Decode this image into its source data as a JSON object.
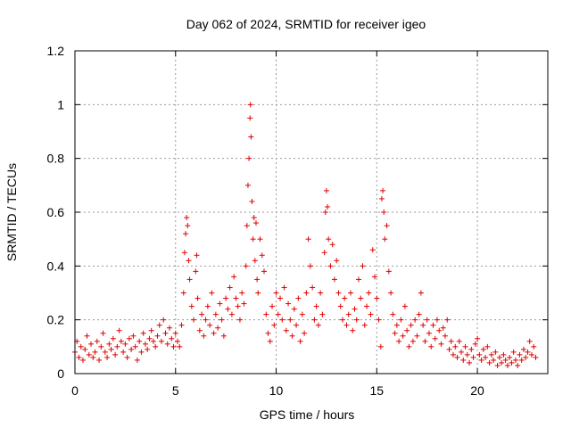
{
  "chart_data": {
    "type": "scatter",
    "title": "Day 062 of 2024, SRMTID for receiver igeo",
    "xlabel": "GPS time / hours",
    "ylabel": "SRMTID / TECUs",
    "xlim": [
      0,
      23.5
    ],
    "ylim": [
      0,
      1.2
    ],
    "xticks": [
      0,
      5,
      10,
      15,
      20
    ],
    "xtick_labels": [
      "0",
      "5",
      "10",
      "15",
      "20"
    ],
    "yticks": [
      0,
      0.2,
      0.4,
      0.6,
      0.8,
      1,
      1.2
    ],
    "ytick_labels": [
      "0",
      "0.2",
      "0.4",
      "0.6",
      "0.8",
      "1",
      "1.2"
    ],
    "grid": true,
    "marker": "plus",
    "series": [
      {
        "name": "SRMTID",
        "color": "#e00000",
        "points": [
          [
            0.0,
            0.08
          ],
          [
            0.1,
            0.12
          ],
          [
            0.2,
            0.06
          ],
          [
            0.3,
            0.1
          ],
          [
            0.4,
            0.05
          ],
          [
            0.5,
            0.09
          ],
          [
            0.6,
            0.14
          ],
          [
            0.7,
            0.07
          ],
          [
            0.8,
            0.11
          ],
          [
            0.9,
            0.06
          ],
          [
            1.0,
            0.08
          ],
          [
            1.1,
            0.12
          ],
          [
            1.2,
            0.05
          ],
          [
            1.3,
            0.1
          ],
          [
            1.4,
            0.15
          ],
          [
            1.5,
            0.08
          ],
          [
            1.6,
            0.06
          ],
          [
            1.7,
            0.11
          ],
          [
            1.8,
            0.09
          ],
          [
            1.9,
            0.13
          ],
          [
            2.0,
            0.07
          ],
          [
            2.1,
            0.1
          ],
          [
            2.2,
            0.16
          ],
          [
            2.3,
            0.12
          ],
          [
            2.4,
            0.08
          ],
          [
            2.5,
            0.11
          ],
          [
            2.6,
            0.06
          ],
          [
            2.7,
            0.13
          ],
          [
            2.8,
            0.09
          ],
          [
            2.9,
            0.14
          ],
          [
            3.0,
            0.1
          ],
          [
            3.1,
            0.05
          ],
          [
            3.2,
            0.12
          ],
          [
            3.3,
            0.08
          ],
          [
            3.4,
            0.15
          ],
          [
            3.5,
            0.11
          ],
          [
            3.6,
            0.09
          ],
          [
            3.7,
            0.13
          ],
          [
            3.8,
            0.16
          ],
          [
            3.9,
            0.12
          ],
          [
            4.0,
            0.1
          ],
          [
            4.1,
            0.14
          ],
          [
            4.2,
            0.18
          ],
          [
            4.3,
            0.12
          ],
          [
            4.4,
            0.2
          ],
          [
            4.5,
            0.15
          ],
          [
            4.6,
            0.11
          ],
          [
            4.7,
            0.17
          ],
          [
            4.8,
            0.13
          ],
          [
            4.9,
            0.1
          ],
          [
            5.0,
            0.15
          ],
          [
            5.1,
            0.12
          ],
          [
            5.2,
            0.1
          ],
          [
            5.3,
            0.18
          ],
          [
            5.4,
            0.3
          ],
          [
            5.45,
            0.45
          ],
          [
            5.5,
            0.52
          ],
          [
            5.55,
            0.58
          ],
          [
            5.6,
            0.55
          ],
          [
            5.65,
            0.42
          ],
          [
            5.7,
            0.35
          ],
          [
            5.8,
            0.25
          ],
          [
            5.9,
            0.2
          ],
          [
            6.0,
            0.38
          ],
          [
            6.05,
            0.44
          ],
          [
            6.1,
            0.28
          ],
          [
            6.2,
            0.16
          ],
          [
            6.3,
            0.22
          ],
          [
            6.4,
            0.14
          ],
          [
            6.5,
            0.2
          ],
          [
            6.6,
            0.25
          ],
          [
            6.7,
            0.18
          ],
          [
            6.8,
            0.3
          ],
          [
            6.9,
            0.15
          ],
          [
            7.0,
            0.22
          ],
          [
            7.1,
            0.17
          ],
          [
            7.2,
            0.26
          ],
          [
            7.3,
            0.2
          ],
          [
            7.4,
            0.14
          ],
          [
            7.5,
            0.28
          ],
          [
            7.6,
            0.24
          ],
          [
            7.7,
            0.32
          ],
          [
            7.8,
            0.22
          ],
          [
            7.9,
            0.36
          ],
          [
            8.0,
            0.28
          ],
          [
            8.1,
            0.25
          ],
          [
            8.2,
            0.2
          ],
          [
            8.3,
            0.3
          ],
          [
            8.4,
            0.26
          ],
          [
            8.5,
            0.4
          ],
          [
            8.55,
            0.55
          ],
          [
            8.6,
            0.7
          ],
          [
            8.65,
            0.8
          ],
          [
            8.7,
            0.95
          ],
          [
            8.72,
            1.0
          ],
          [
            8.75,
            0.88
          ],
          [
            8.8,
            0.64
          ],
          [
            8.85,
            0.5
          ],
          [
            8.9,
            0.58
          ],
          [
            8.95,
            0.42
          ],
          [
            9.0,
            0.56
          ],
          [
            9.05,
            0.35
          ],
          [
            9.1,
            0.3
          ],
          [
            9.2,
            0.5
          ],
          [
            9.3,
            0.44
          ],
          [
            9.4,
            0.38
          ],
          [
            9.5,
            0.22
          ],
          [
            9.6,
            0.15
          ],
          [
            9.7,
            0.12
          ],
          [
            9.8,
            0.25
          ],
          [
            9.9,
            0.18
          ],
          [
            10.0,
            0.3
          ],
          [
            10.1,
            0.22
          ],
          [
            10.2,
            0.28
          ],
          [
            10.3,
            0.2
          ],
          [
            10.4,
            0.32
          ],
          [
            10.5,
            0.16
          ],
          [
            10.6,
            0.26
          ],
          [
            10.7,
            0.2
          ],
          [
            10.8,
            0.14
          ],
          [
            10.9,
            0.24
          ],
          [
            11.0,
            0.18
          ],
          [
            11.1,
            0.28
          ],
          [
            11.2,
            0.12
          ],
          [
            11.3,
            0.22
          ],
          [
            11.4,
            0.15
          ],
          [
            11.5,
            0.3
          ],
          [
            11.6,
            0.5
          ],
          [
            11.7,
            0.4
          ],
          [
            11.8,
            0.32
          ],
          [
            11.9,
            0.2
          ],
          [
            12.0,
            0.25
          ],
          [
            12.1,
            0.18
          ],
          [
            12.2,
            0.3
          ],
          [
            12.3,
            0.22
          ],
          [
            12.4,
            0.45
          ],
          [
            12.45,
            0.6
          ],
          [
            12.5,
            0.68
          ],
          [
            12.55,
            0.62
          ],
          [
            12.6,
            0.5
          ],
          [
            12.7,
            0.4
          ],
          [
            12.8,
            0.48
          ],
          [
            12.9,
            0.35
          ],
          [
            13.0,
            0.42
          ],
          [
            13.1,
            0.3
          ],
          [
            13.2,
            0.25
          ],
          [
            13.3,
            0.2
          ],
          [
            13.4,
            0.28
          ],
          [
            13.5,
            0.18
          ],
          [
            13.6,
            0.22
          ],
          [
            13.7,
            0.3
          ],
          [
            13.8,
            0.16
          ],
          [
            13.9,
            0.24
          ],
          [
            14.0,
            0.2
          ],
          [
            14.1,
            0.35
          ],
          [
            14.2,
            0.28
          ],
          [
            14.3,
            0.4
          ],
          [
            14.4,
            0.18
          ],
          [
            14.5,
            0.25
          ],
          [
            14.6,
            0.3
          ],
          [
            14.7,
            0.22
          ],
          [
            14.8,
            0.46
          ],
          [
            14.9,
            0.36
          ],
          [
            15.0,
            0.28
          ],
          [
            15.1,
            0.2
          ],
          [
            15.2,
            0.1
          ],
          [
            15.25,
            0.65
          ],
          [
            15.3,
            0.68
          ],
          [
            15.35,
            0.6
          ],
          [
            15.4,
            0.5
          ],
          [
            15.5,
            0.55
          ],
          [
            15.6,
            0.38
          ],
          [
            15.7,
            0.3
          ],
          [
            15.8,
            0.22
          ],
          [
            15.9,
            0.15
          ],
          [
            16.0,
            0.18
          ],
          [
            16.1,
            0.12
          ],
          [
            16.2,
            0.2
          ],
          [
            16.3,
            0.14
          ],
          [
            16.4,
            0.25
          ],
          [
            16.5,
            0.16
          ],
          [
            16.6,
            0.1
          ],
          [
            16.7,
            0.18
          ],
          [
            16.8,
            0.12
          ],
          [
            16.9,
            0.2
          ],
          [
            17.0,
            0.14
          ],
          [
            17.1,
            0.22
          ],
          [
            17.2,
            0.3
          ],
          [
            17.3,
            0.18
          ],
          [
            17.4,
            0.12
          ],
          [
            17.5,
            0.2
          ],
          [
            17.6,
            0.15
          ],
          [
            17.7,
            0.1
          ],
          [
            17.8,
            0.18
          ],
          [
            17.9,
            0.13
          ],
          [
            18.0,
            0.2
          ],
          [
            18.1,
            0.16
          ],
          [
            18.2,
            0.11
          ],
          [
            18.3,
            0.17
          ],
          [
            18.4,
            0.14
          ],
          [
            18.5,
            0.2
          ],
          [
            18.6,
            0.09
          ],
          [
            18.7,
            0.12
          ],
          [
            18.8,
            0.07
          ],
          [
            18.9,
            0.1
          ],
          [
            19.0,
            0.06
          ],
          [
            19.1,
            0.12
          ],
          [
            19.2,
            0.08
          ],
          [
            19.3,
            0.05
          ],
          [
            19.4,
            0.1
          ],
          [
            19.5,
            0.07
          ],
          [
            19.6,
            0.04
          ],
          [
            19.7,
            0.09
          ],
          [
            19.8,
            0.06
          ],
          [
            19.9,
            0.11
          ],
          [
            20.0,
            0.13
          ],
          [
            20.1,
            0.07
          ],
          [
            20.2,
            0.05
          ],
          [
            20.3,
            0.09
          ],
          [
            20.4,
            0.06
          ],
          [
            20.5,
            0.1
          ],
          [
            20.6,
            0.04
          ],
          [
            20.7,
            0.07
          ],
          [
            20.8,
            0.05
          ],
          [
            20.9,
            0.08
          ],
          [
            21.0,
            0.03
          ],
          [
            21.1,
            0.06
          ],
          [
            21.2,
            0.04
          ],
          [
            21.3,
            0.07
          ],
          [
            21.4,
            0.05
          ],
          [
            21.5,
            0.03
          ],
          [
            21.6,
            0.06
          ],
          [
            21.7,
            0.04
          ],
          [
            21.8,
            0.08
          ],
          [
            21.9,
            0.05
          ],
          [
            22.0,
            0.03
          ],
          [
            22.1,
            0.07
          ],
          [
            22.2,
            0.05
          ],
          [
            22.3,
            0.09
          ],
          [
            22.4,
            0.06
          ],
          [
            22.5,
            0.08
          ],
          [
            22.6,
            0.12
          ],
          [
            22.7,
            0.07
          ],
          [
            22.8,
            0.1
          ],
          [
            22.9,
            0.06
          ]
        ]
      }
    ]
  }
}
